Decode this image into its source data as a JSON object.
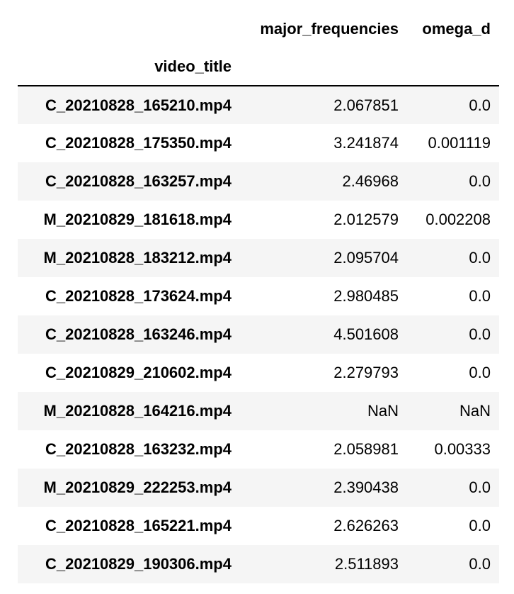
{
  "table": {
    "columns": [
      "major_frequencies",
      "omega_d"
    ],
    "index_name": "video_title",
    "rows": [
      {
        "video_title": "C_20210828_165210.mp4",
        "major_frequencies": "2.067851",
        "omega_d": "0.0"
      },
      {
        "video_title": "C_20210828_175350.mp4",
        "major_frequencies": "3.241874",
        "omega_d": "0.001119"
      },
      {
        "video_title": "C_20210828_163257.mp4",
        "major_frequencies": "2.46968",
        "omega_d": "0.0"
      },
      {
        "video_title": "M_20210829_181618.mp4",
        "major_frequencies": "2.012579",
        "omega_d": "0.002208"
      },
      {
        "video_title": "M_20210828_183212.mp4",
        "major_frequencies": "2.095704",
        "omega_d": "0.0"
      },
      {
        "video_title": "C_20210828_173624.mp4",
        "major_frequencies": "2.980485",
        "omega_d": "0.0"
      },
      {
        "video_title": "C_20210828_163246.mp4",
        "major_frequencies": "4.501608",
        "omega_d": "0.0"
      },
      {
        "video_title": "C_20210829_210602.mp4",
        "major_frequencies": "2.279793",
        "omega_d": "0.0"
      },
      {
        "video_title": "M_20210828_164216.mp4",
        "major_frequencies": "NaN",
        "omega_d": "NaN"
      },
      {
        "video_title": "C_20210828_163232.mp4",
        "major_frequencies": "2.058981",
        "omega_d": "0.00333"
      },
      {
        "video_title": "M_20210829_222253.mp4",
        "major_frequencies": "2.390438",
        "omega_d": "0.0"
      },
      {
        "video_title": "C_20210828_165221.mp4",
        "major_frequencies": "2.626263",
        "omega_d": "0.0"
      },
      {
        "video_title": "C_20210829_190306.mp4",
        "major_frequencies": "2.511893",
        "omega_d": "0.0"
      }
    ]
  },
  "colors": {
    "row_stripe": "#f5f5f5",
    "background": "#ffffff",
    "text": "#000000",
    "header_rule": "#000000"
  }
}
